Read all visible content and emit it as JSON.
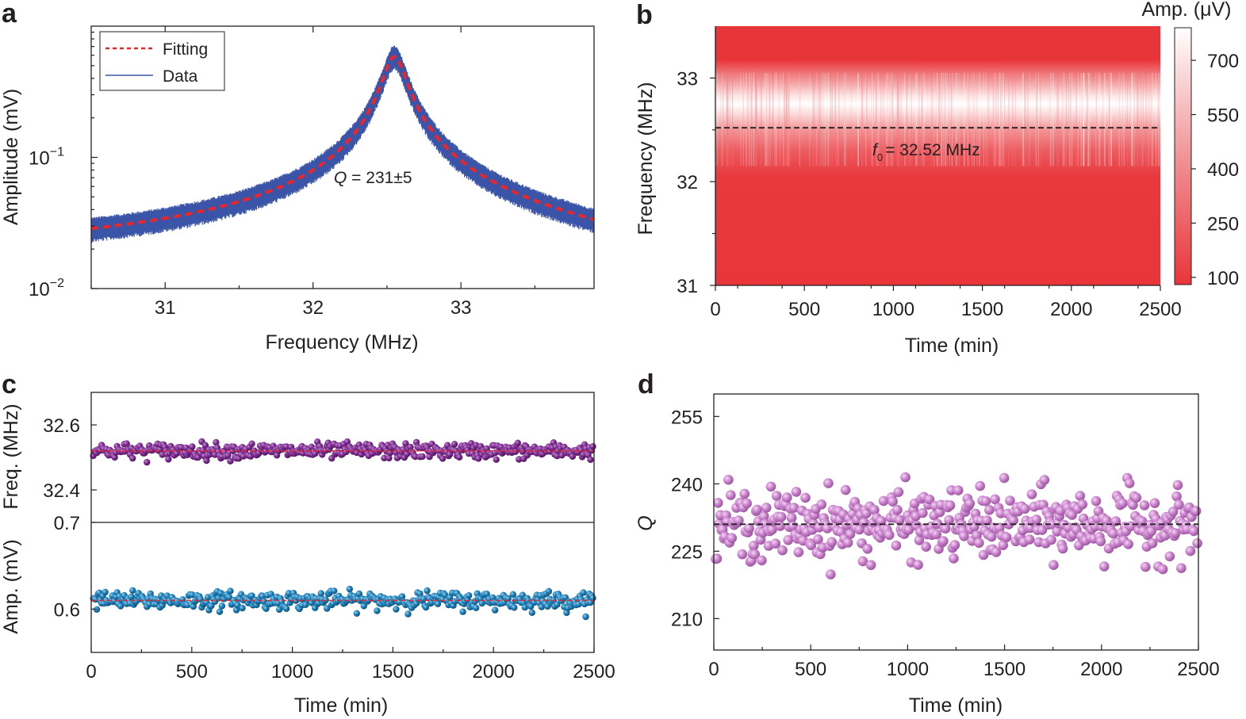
{
  "panels": {
    "a": {
      "letter": "a"
    },
    "b": {
      "letter": "b"
    },
    "c": {
      "letter": "c"
    },
    "d": {
      "letter": "d"
    }
  },
  "colors": {
    "fit": "#e8262b",
    "data": "#3a55a8",
    "heat_low": "#e8353a",
    "heat_high": "#ffffff",
    "freq_points": "#7b2d8e",
    "amp_points": "#1f7db5",
    "q_points": "#c67dc8",
    "dashed": "#231f20"
  },
  "chart_data": [
    {
      "id": "a",
      "type": "line",
      "title": "",
      "xlabel": "Frequency (MHz)",
      "ylabel": "Amplitude (mV)",
      "xlim": [
        30.5,
        33.9
      ],
      "ylim": [
        0.01,
        1.0
      ],
      "yscale": "log",
      "xticks": [
        "31",
        "32",
        "33"
      ],
      "xtick_values": [
        31,
        32,
        33
      ],
      "yticks": [
        "10",
        "10"
      ],
      "ytick_exponents": [
        "−1",
        "−2"
      ],
      "ytick_values": [
        0.1,
        0.01
      ],
      "legend": {
        "position": "top-left",
        "entries": [
          "Fitting",
          "Data"
        ]
      },
      "annotation": {
        "label": "Q",
        "text": " = 231±5"
      },
      "model": {
        "f0": 32.55,
        "Q": 231,
        "peak_mV": 0.58
      },
      "series": [
        {
          "name": "Data",
          "style": "noisy band"
        },
        {
          "name": "Fitting",
          "style": "dashed"
        }
      ]
    },
    {
      "id": "b",
      "type": "heatmap",
      "xlabel": "Time (min)",
      "ylabel": "Frequency (MHz)",
      "xlim": [
        0,
        2500
      ],
      "ylim": [
        31,
        33.5
      ],
      "xticks": [
        "0",
        "500",
        "1000",
        "1500",
        "2000",
        "2500"
      ],
      "xtick_values": [
        0,
        500,
        1000,
        1500,
        2000,
        2500
      ],
      "yticks": [
        "31",
        "32",
        "33"
      ],
      "ytick_values": [
        31,
        32,
        33
      ],
      "colorbar": {
        "label": "Amp. (μV)",
        "ticks": [
          "100",
          "250",
          "400",
          "550",
          "700"
        ],
        "tick_values": [
          100,
          250,
          400,
          550,
          700
        ],
        "range": [
          80,
          790
        ]
      },
      "f0_line": 32.52,
      "annotation": {
        "symbol": "f",
        "subscript": "0",
        "text": "= 32.52 MHz"
      }
    },
    {
      "id": "c",
      "type": "scatter",
      "xlabel": "Time (min)",
      "xlim": [
        0,
        2500
      ],
      "xticks": [
        "0",
        "500",
        "1000",
        "1500",
        "2000",
        "2500"
      ],
      "xtick_values": [
        0,
        500,
        1000,
        1500,
        2000,
        2500
      ],
      "top": {
        "ylabel": "Freq. (MHz)",
        "ylim": [
          32.3,
          32.7
        ],
        "yticks": [
          "32.4",
          "32.6"
        ],
        "ytick_values": [
          32.4,
          32.6
        ],
        "mean": 32.52,
        "spread": 0.012,
        "n_points": 420
      },
      "bottom": {
        "ylabel": "Amp. (mV)",
        "ylim": [
          0.55,
          0.7
        ],
        "yticks": [
          "0.6",
          "0.7"
        ],
        "ytick_values": [
          0.6,
          0.7
        ],
        "mean": 0.61,
        "spread": 0.005,
        "n_points": 420
      }
    },
    {
      "id": "d",
      "type": "scatter",
      "xlabel": "Time (min)",
      "ylabel": "Q",
      "xlim": [
        0,
        2500
      ],
      "ylim": [
        203,
        260
      ],
      "xticks": [
        "0",
        "500",
        "1000",
        "1500",
        "2000",
        "2500"
      ],
      "xtick_values": [
        0,
        500,
        1000,
        1500,
        2000,
        2500
      ],
      "yticks": [
        "210",
        "225",
        "240",
        "255"
      ],
      "ytick_values": [
        210,
        225,
        240,
        255
      ],
      "mean": 231,
      "spread": 3.8,
      "n_points": 420
    }
  ]
}
